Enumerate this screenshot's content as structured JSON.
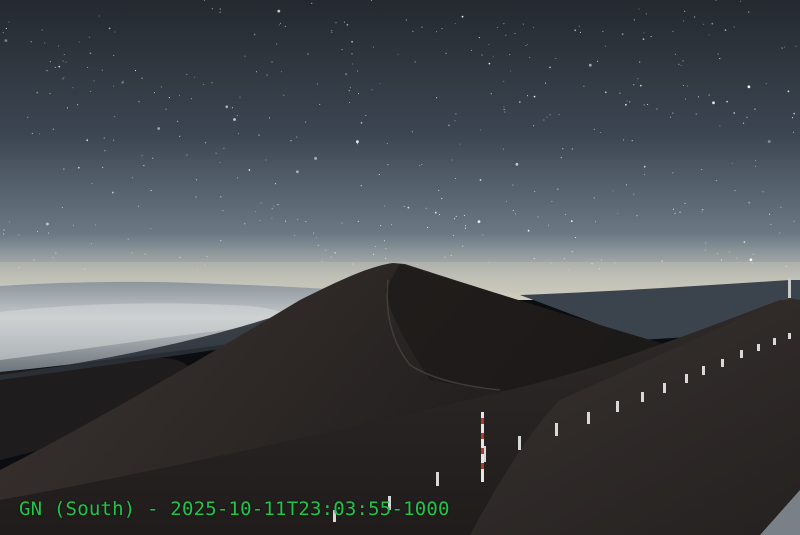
{
  "overlay": {
    "timestamp_text": "GN (South) - 2025-10-11T23:03:55-1000",
    "color": "#22c34a"
  },
  "scene": {
    "sky_top": "#2b3037",
    "sky_mid": "#4a5664",
    "horizon_glow": "#c8c6b8",
    "cloud_sea": "#bfc3c5",
    "far_ridge": "#3f4752",
    "cinder_cone": "#2a2624",
    "slope": "#2e2a28",
    "fence_posts": "#d8d8d8",
    "fence_stripe": "#b33a2a",
    "road_edge": "#9aa3ad"
  }
}
